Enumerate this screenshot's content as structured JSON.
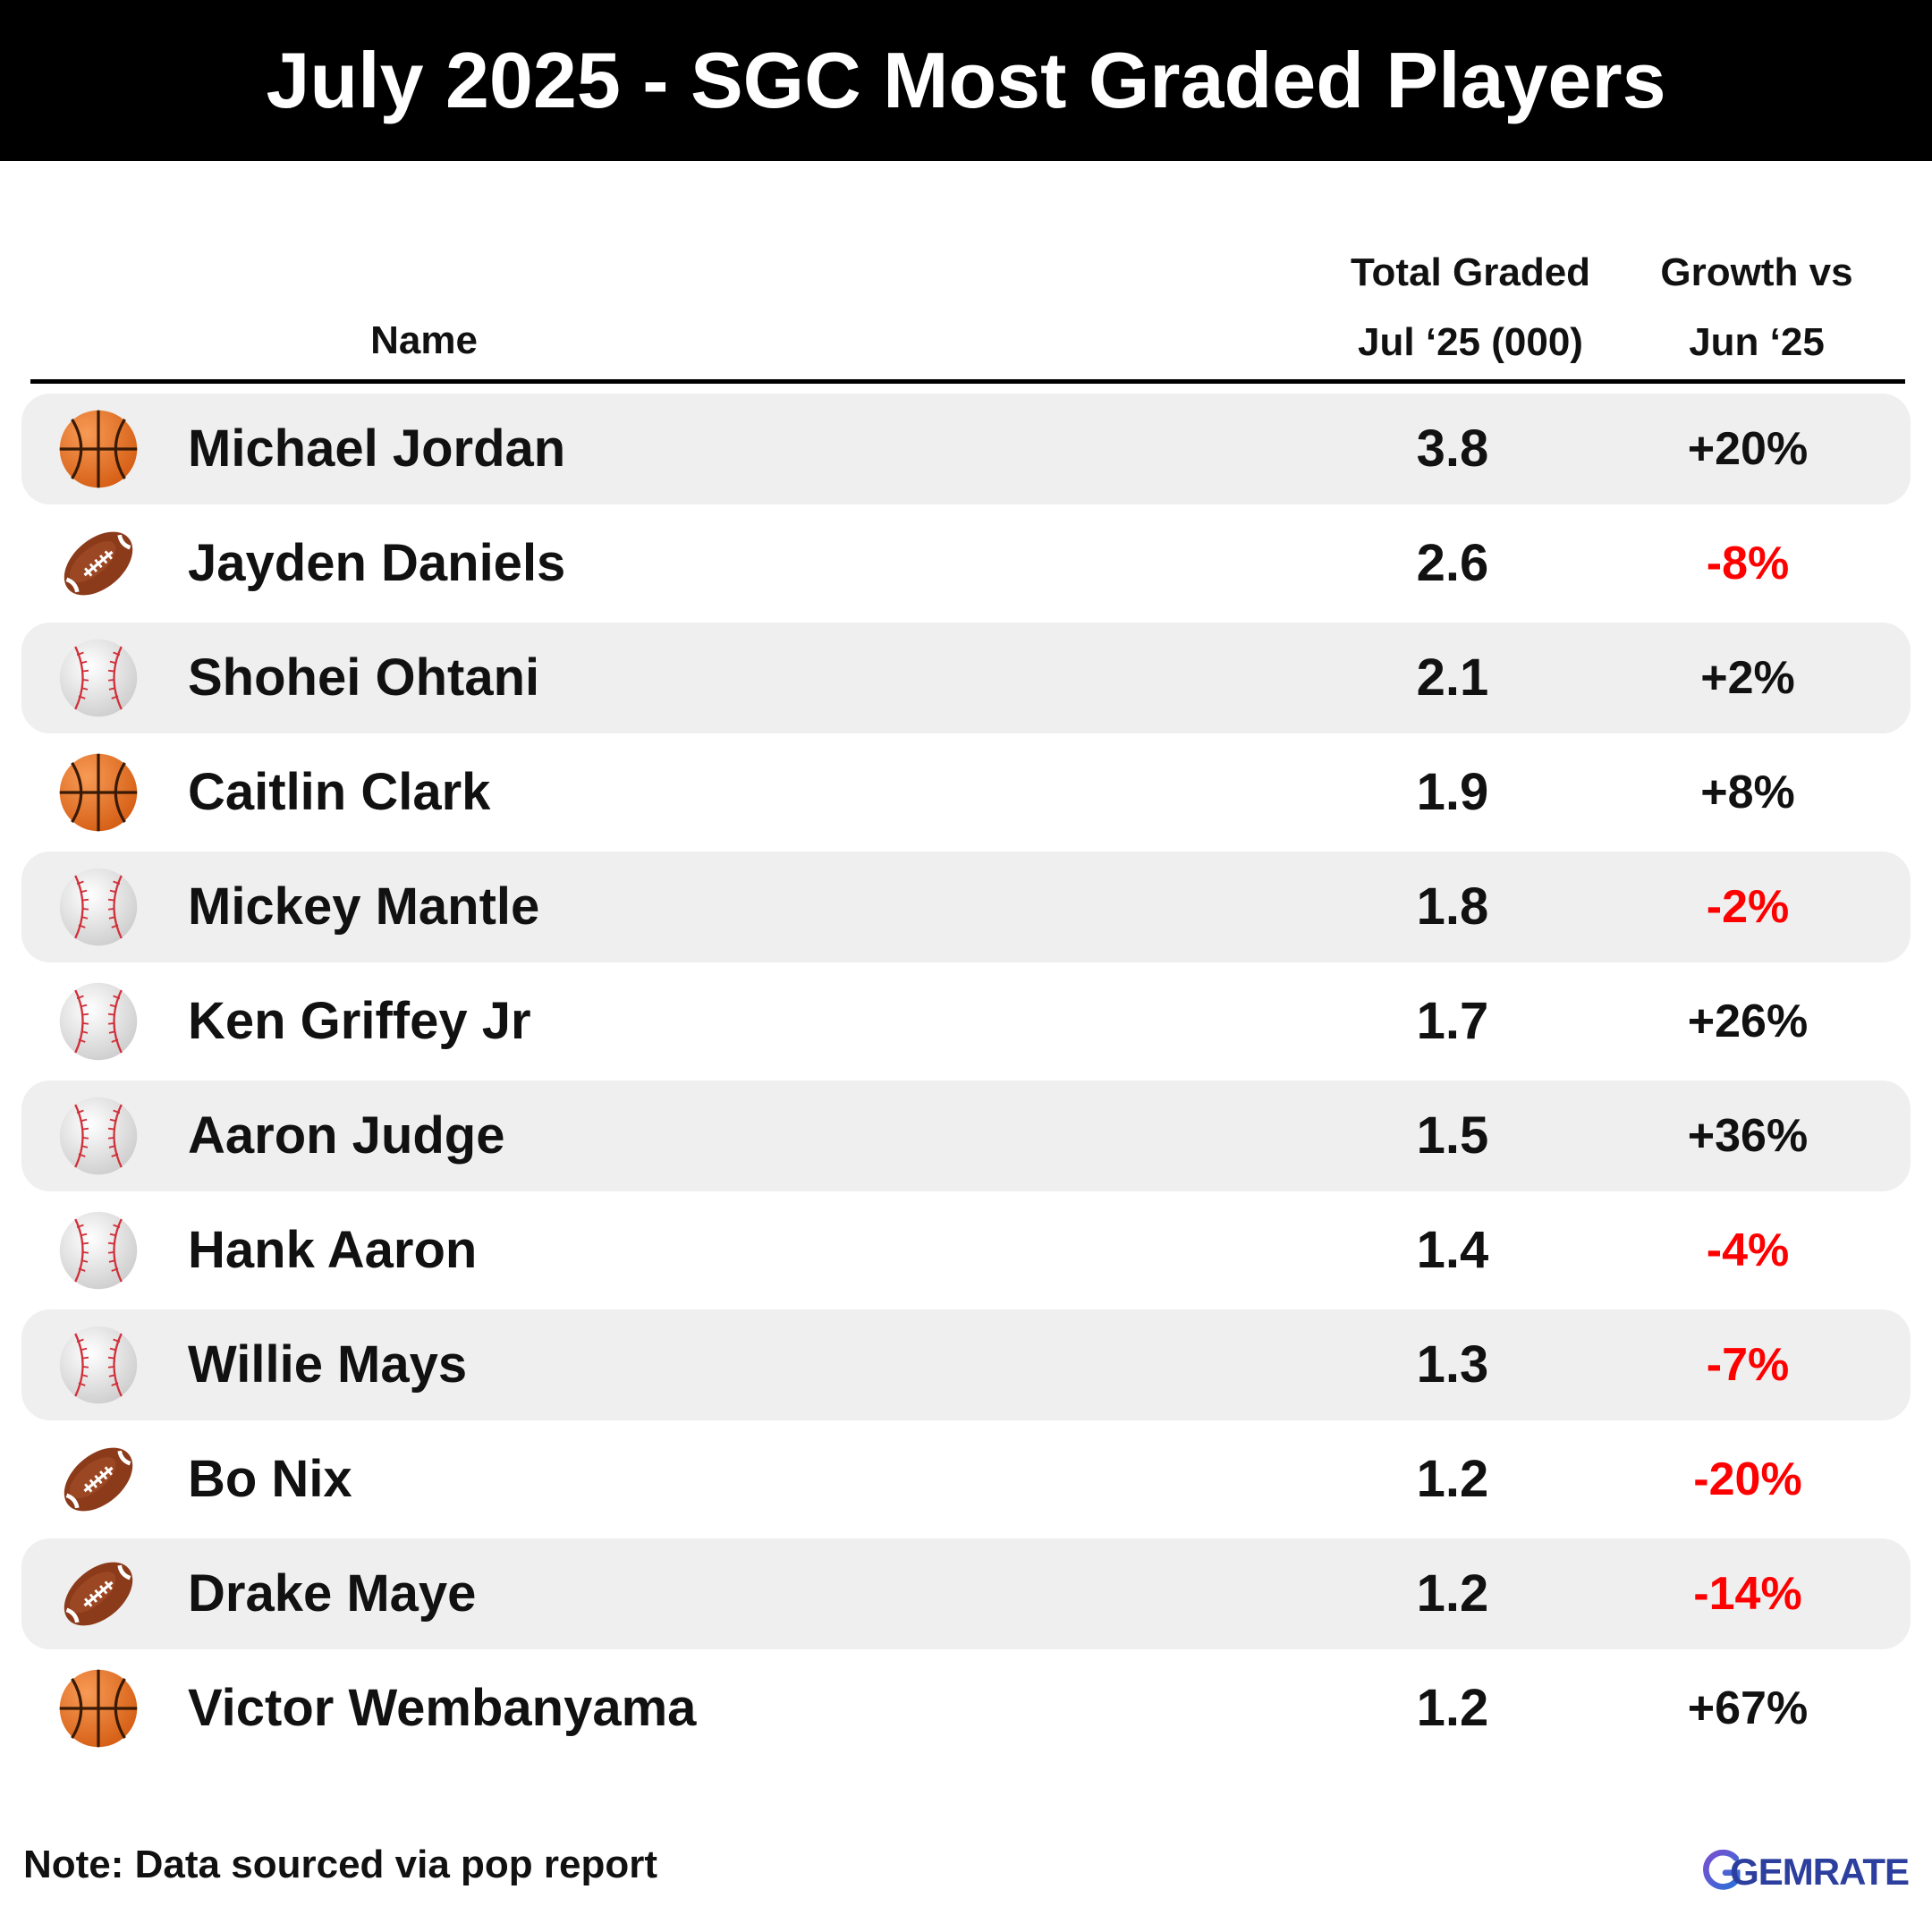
{
  "title": "July 2025 - SGC Most Graded Players",
  "colors": {
    "title_bg": "#000000",
    "title_text": "#ffffff",
    "row_shade": "#efefef",
    "positive": "#111111",
    "negative": "#ff0000",
    "logo": "#2c3e9e"
  },
  "chart_data": {
    "type": "table",
    "columns": [
      {
        "key": "name",
        "label": "Name"
      },
      {
        "key": "total",
        "label_line1": "Total Graded",
        "label_line2": "Jul ‘25 (000)"
      },
      {
        "key": "growth",
        "label_line1": "Growth vs",
        "label_line2": "Jun ‘25"
      }
    ],
    "rows": [
      {
        "sport": "basketball-icon",
        "name": "Michael Jordan",
        "total": "3.8",
        "growth": "+20%"
      },
      {
        "sport": "football-icon",
        "name": "Jayden Daniels",
        "total": "2.6",
        "growth": "-8%"
      },
      {
        "sport": "baseball-icon",
        "name": "Shohei Ohtani",
        "total": "2.1",
        "growth": "+2%"
      },
      {
        "sport": "basketball-icon",
        "name": "Caitlin Clark",
        "total": "1.9",
        "growth": "+8%"
      },
      {
        "sport": "baseball-icon",
        "name": "Mickey Mantle",
        "total": "1.8",
        "growth": "-2%"
      },
      {
        "sport": "baseball-icon",
        "name": "Ken Griffey Jr",
        "total": "1.7",
        "growth": "+26%"
      },
      {
        "sport": "baseball-icon",
        "name": "Aaron Judge",
        "total": "1.5",
        "growth": "+36%"
      },
      {
        "sport": "baseball-icon",
        "name": "Hank Aaron",
        "total": "1.4",
        "growth": "-4%"
      },
      {
        "sport": "baseball-icon",
        "name": "Willie Mays",
        "total": "1.3",
        "growth": "-7%"
      },
      {
        "sport": "football-icon",
        "name": "Bo Nix",
        "total": "1.2",
        "growth": "-20%"
      },
      {
        "sport": "football-icon",
        "name": "Drake Maye",
        "total": "1.2",
        "growth": "-14%"
      },
      {
        "sport": "basketball-icon",
        "name": "Victor Wembanyama",
        "total": "1.2",
        "growth": "+67%"
      }
    ]
  },
  "footer": {
    "note": "Note: Data sourced via pop report",
    "logo_text": "GEMRATE"
  }
}
